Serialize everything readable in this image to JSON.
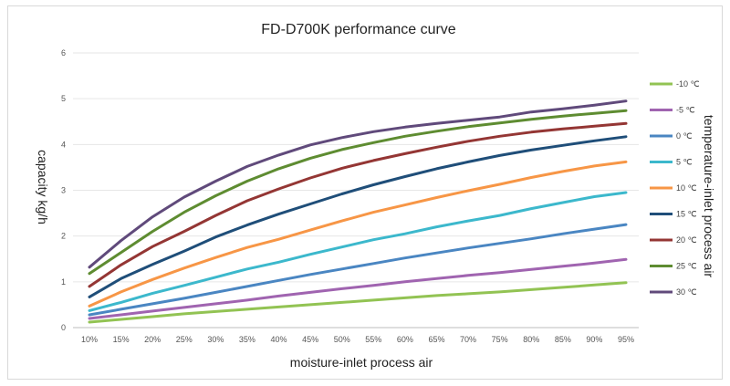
{
  "chart_data": {
    "type": "line",
    "title": "FD-D700K performance curve",
    "xlabel": "moisture-inlet process air",
    "ylabel": "capacity kg/h",
    "legend_title": "temperature-inlet process air",
    "legend_position": "right",
    "grid": true,
    "ylim": [
      0,
      6
    ],
    "yticks": [
      "0",
      "1",
      "2",
      "3",
      "4",
      "5",
      "6"
    ],
    "categories": [
      "10%",
      "15%",
      "20%",
      "25%",
      "30%",
      "35%",
      "40%",
      "45%",
      "50%",
      "55%",
      "60%",
      "65%",
      "70%",
      "75%",
      "80%",
      "85%",
      "90%",
      "95%"
    ],
    "series": [
      {
        "name": "-10 ℃",
        "color": "#92c353",
        "values": [
          0.12,
          0.18,
          0.24,
          0.3,
          0.35,
          0.4,
          0.45,
          0.5,
          0.55,
          0.6,
          0.65,
          0.7,
          0.74,
          0.78,
          0.83,
          0.88,
          0.93,
          0.98
        ]
      },
      {
        "name": "-5 ℃",
        "color": "#a064b0",
        "values": [
          0.2,
          0.28,
          0.36,
          0.44,
          0.52,
          0.6,
          0.69,
          0.77,
          0.85,
          0.92,
          1.0,
          1.07,
          1.14,
          1.2,
          1.27,
          1.34,
          1.41,
          1.49
        ]
      },
      {
        "name": "0 ℃",
        "color": "#4a86c2",
        "values": [
          0.28,
          0.4,
          0.52,
          0.64,
          0.77,
          0.9,
          1.03,
          1.16,
          1.28,
          1.4,
          1.52,
          1.63,
          1.74,
          1.84,
          1.94,
          2.05,
          2.15,
          2.25
        ]
      },
      {
        "name": "5 ℃",
        "color": "#3cb8cc",
        "values": [
          0.37,
          0.55,
          0.75,
          0.92,
          1.1,
          1.28,
          1.43,
          1.6,
          1.76,
          1.92,
          2.05,
          2.2,
          2.33,
          2.45,
          2.6,
          2.73,
          2.86,
          2.95
        ]
      },
      {
        "name": "10 ℃",
        "color": "#f79646",
        "values": [
          0.47,
          0.78,
          1.05,
          1.3,
          1.53,
          1.75,
          1.93,
          2.13,
          2.33,
          2.52,
          2.68,
          2.84,
          2.99,
          3.13,
          3.28,
          3.41,
          3.53,
          3.62
        ]
      },
      {
        "name": "15 ℃",
        "color": "#1f4e79",
        "values": [
          0.67,
          1.07,
          1.38,
          1.67,
          1.98,
          2.24,
          2.48,
          2.7,
          2.92,
          3.12,
          3.3,
          3.47,
          3.62,
          3.76,
          3.88,
          3.98,
          4.08,
          4.17
        ]
      },
      {
        "name": "20 ℃",
        "color": "#943634",
        "values": [
          0.9,
          1.37,
          1.77,
          2.1,
          2.45,
          2.77,
          3.03,
          3.27,
          3.48,
          3.65,
          3.8,
          3.94,
          4.07,
          4.18,
          4.27,
          4.34,
          4.4,
          4.46
        ]
      },
      {
        "name": "25 ℃",
        "color": "#5e8c31",
        "values": [
          1.18,
          1.64,
          2.1,
          2.52,
          2.88,
          3.2,
          3.47,
          3.7,
          3.89,
          4.04,
          4.18,
          4.29,
          4.39,
          4.47,
          4.55,
          4.62,
          4.68,
          4.74
        ]
      },
      {
        "name": "30 ℃",
        "color": "#604a7b",
        "values": [
          1.32,
          1.9,
          2.42,
          2.85,
          3.2,
          3.52,
          3.77,
          3.99,
          4.15,
          4.28,
          4.38,
          4.46,
          4.53,
          4.6,
          4.71,
          4.78,
          4.86,
          4.95
        ]
      }
    ]
  }
}
